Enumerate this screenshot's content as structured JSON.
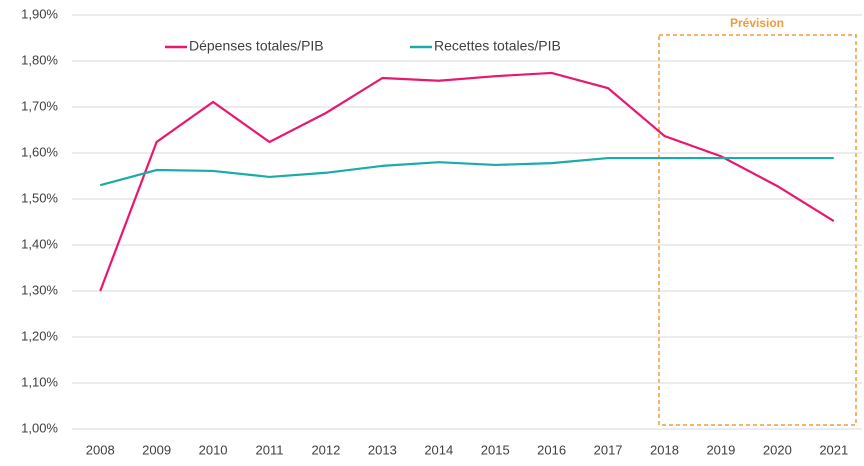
{
  "chart_data": {
    "type": "line",
    "annotation": "Prévision",
    "categories": [
      "2008",
      "2009",
      "2010",
      "2011",
      "2012",
      "2013",
      "2014",
      "2015",
      "2016",
      "2017",
      "2018",
      "2019",
      "2020",
      "2021"
    ],
    "series": [
      {
        "name": "Dépenses totales/PIB",
        "color": "#e8176f",
        "values": [
          1.3,
          1.624,
          1.711,
          1.624,
          1.687,
          1.763,
          1.757,
          1.767,
          1.774,
          1.741,
          1.637,
          1.593,
          1.528,
          1.452
        ]
      },
      {
        "name": "Recettes totales/PIB",
        "color": "#1aaca8",
        "values": [
          1.53,
          1.563,
          1.561,
          1.548,
          1.557,
          1.572,
          1.58,
          1.574,
          1.578,
          1.589,
          1.589,
          1.589,
          1.589,
          1.589
        ]
      }
    ],
    "ylim": [
      1.0,
      1.9
    ],
    "yticks": [
      {
        "value": 1.0,
        "label": "1,00%"
      },
      {
        "value": 1.1,
        "label": "1,10%"
      },
      {
        "value": 1.2,
        "label": "1,20%"
      },
      {
        "value": 1.3,
        "label": "1,30%"
      },
      {
        "value": 1.4,
        "label": "1,40%"
      },
      {
        "value": 1.5,
        "label": "1,50%"
      },
      {
        "value": 1.6,
        "label": "1,60%"
      },
      {
        "value": 1.7,
        "label": "1,70%"
      },
      {
        "value": 1.8,
        "label": "1,80%"
      },
      {
        "value": 1.9,
        "label": "1,90%"
      }
    ],
    "grid": true,
    "legend": "top"
  }
}
